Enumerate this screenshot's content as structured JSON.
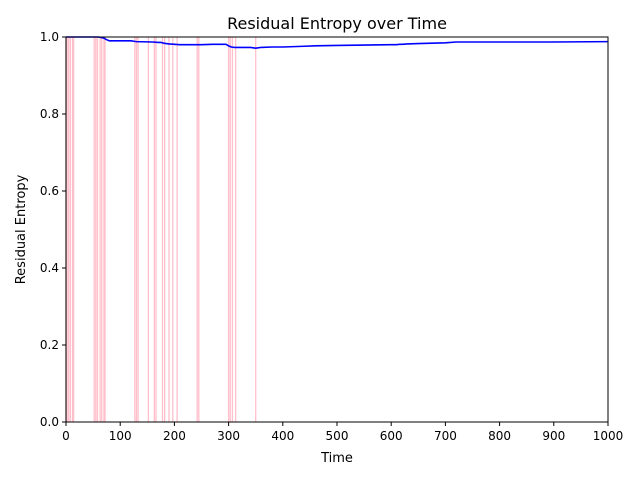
{
  "chart_data": {
    "type": "line",
    "title": "Residual Entropy over Time",
    "xlabel": "Time",
    "ylabel": "Residual Entropy",
    "xlim": [
      0,
      1000
    ],
    "ylim": [
      0,
      1.0
    ],
    "x_ticks": [
      0,
      100,
      200,
      300,
      400,
      500,
      600,
      700,
      800,
      900,
      1000
    ],
    "x_tick_labels": [
      "0",
      "100",
      "200",
      "300",
      "400",
      "500",
      "600",
      "700",
      "800",
      "900",
      "1000"
    ],
    "y_ticks": [
      0,
      0.2,
      0.4,
      0.6,
      0.8,
      1.0
    ],
    "y_tick_labels": [
      "0.0",
      "0.2",
      "0.4",
      "0.6",
      "0.8",
      "1.0"
    ],
    "grid": false,
    "legend": "none",
    "event_markers": {
      "color": "#ffc0cb",
      "x": [
        0,
        2,
        5,
        8,
        12,
        14,
        52,
        55,
        58,
        63,
        66,
        70,
        72,
        127,
        130,
        133,
        152,
        163,
        166,
        178,
        182,
        190,
        197,
        205,
        242,
        245,
        300,
        303,
        307,
        313,
        350
      ]
    },
    "series": [
      {
        "color": "#0000ff",
        "x": [
          0,
          60,
          70,
          75,
          80,
          100,
          120,
          125,
          130,
          160,
          170,
          175,
          180,
          190,
          200,
          210,
          250,
          270,
          295,
          300,
          305,
          310,
          340,
          345,
          350,
          360,
          380,
          400,
          420,
          440,
          460,
          500,
          550,
          600,
          610,
          615,
          620,
          630,
          650,
          700,
          720,
          800,
          900,
          1000
        ],
        "y": [
          1.0,
          1.0,
          0.997,
          0.993,
          0.99,
          0.99,
          0.99,
          0.989,
          0.988,
          0.987,
          0.986,
          0.986,
          0.984,
          0.982,
          0.981,
          0.98,
          0.98,
          0.981,
          0.981,
          0.977,
          0.974,
          0.973,
          0.973,
          0.972,
          0.971,
          0.973,
          0.974,
          0.974,
          0.975,
          0.976,
          0.977,
          0.978,
          0.979,
          0.98,
          0.98,
          0.981,
          0.981,
          0.982,
          0.983,
          0.985,
          0.987,
          0.987,
          0.987,
          0.988
        ]
      }
    ]
  }
}
